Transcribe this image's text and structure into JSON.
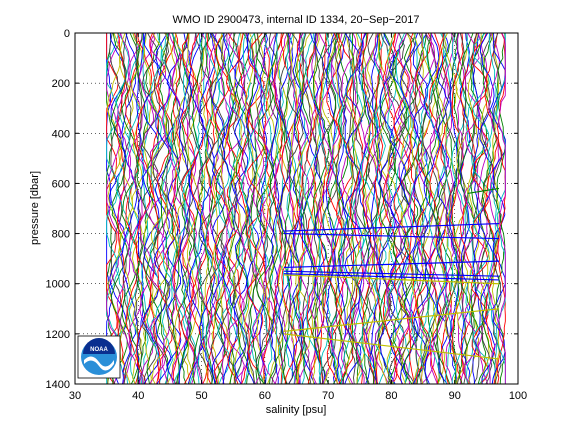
{
  "chart_data": {
    "type": "line",
    "title": "WMO ID 2900473, internal ID 1334, 20−Sep−2017",
    "xlabel": "salinity [psu]",
    "ylabel": "pressure [dbar]",
    "xlim": [
      30,
      100
    ],
    "ylim": [
      0,
      1400
    ],
    "y_reversed": true,
    "xticks": [
      "30",
      "40",
      "50",
      "60",
      "70",
      "80",
      "90",
      "100"
    ],
    "yticks": [
      "0",
      "200",
      "400",
      "600",
      "800",
      "1000",
      "1200",
      "1400"
    ],
    "xtick_values": [
      30,
      40,
      50,
      60,
      70,
      80,
      90,
      100
    ],
    "ytick_values": [
      0,
      200,
      400,
      600,
      800,
      1000,
      1200,
      1400
    ],
    "grid": "dotted",
    "profiles_x_range": [
      35,
      98
    ],
    "profiles_count": 250,
    "profile_colors": [
      "#0000ff",
      "#008000",
      "#ff0000",
      "#00bfbf",
      "#bf00bf",
      "#bfbf00",
      "#404040"
    ],
    "highlight_segments": [
      {
        "color": "#0000ff",
        "x": [
          63,
          97
        ],
        "y": [
          790,
          760
        ]
      },
      {
        "color": "#0000ff",
        "x": [
          63,
          97
        ],
        "y": [
          800,
          820
        ]
      },
      {
        "color": "#0000ff",
        "x": [
          63,
          97
        ],
        "y": [
          935,
          910
        ]
      },
      {
        "color": "#0000ff",
        "x": [
          63,
          97
        ],
        "y": [
          950,
          970
        ]
      },
      {
        "color": "#0000ff",
        "x": [
          63,
          97
        ],
        "y": [
          960,
          985
        ]
      },
      {
        "color": "#bfbf00",
        "x": [
          63,
          97
        ],
        "y": [
          965,
          1000
        ]
      },
      {
        "color": "#bfbf00",
        "x": [
          63,
          97
        ],
        "y": [
          1190,
          1100
        ]
      },
      {
        "color": "#bfbf00",
        "x": [
          63,
          97
        ],
        "y": [
          1200,
          1300
        ]
      },
      {
        "color": "#008000",
        "x": [
          92,
          97
        ],
        "y": [
          640,
          620
        ]
      }
    ],
    "logo": {
      "text": "NOAA",
      "colors": [
        "#0a2f8f",
        "#2a8fd8"
      ]
    }
  }
}
